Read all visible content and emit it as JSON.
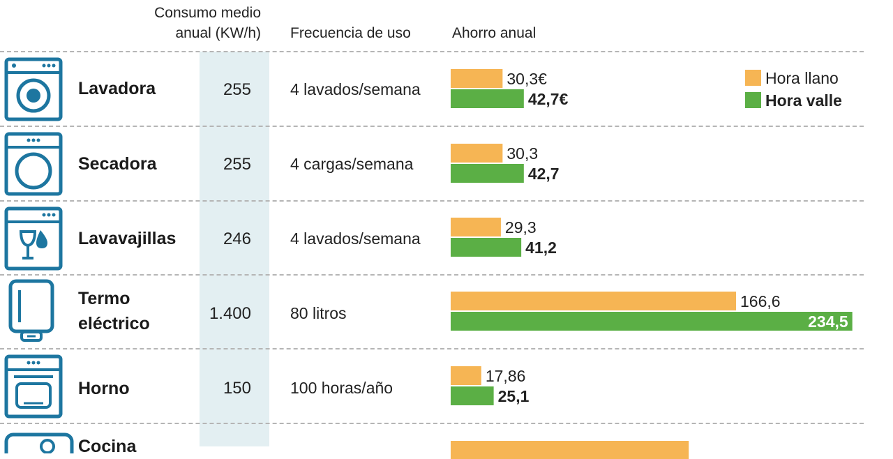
{
  "header": {
    "consumo_line1": "Consumo medio",
    "consumo_line2": "anual (KW/h)",
    "frecuencia": "Frecuencia de uso",
    "ahorro": "Ahorro anual"
  },
  "legend": {
    "llano": "Hora llano",
    "valle": "Hora valle"
  },
  "colors": {
    "llano": "#f6b554",
    "valle": "#5baf45",
    "icon": "#1d76a0",
    "band": "#e3eff2"
  },
  "rows": [
    {
      "name": "Lavadora",
      "name2": "",
      "consumo": "255",
      "frecuencia": "4 lavados/semana",
      "icon": "washing-machine-icon"
    },
    {
      "name": "Secadora",
      "name2": "",
      "consumo": "255",
      "frecuencia": "4 cargas/semana",
      "icon": "dryer-icon"
    },
    {
      "name": "Lavavajillas",
      "name2": "",
      "consumo": "246",
      "frecuencia": "4 lavados/semana",
      "icon": "dishwasher-icon"
    },
    {
      "name": "Termo",
      "name2": "eléctrico",
      "consumo": "1.400",
      "frecuencia": "80 litros",
      "icon": "water-heater-icon"
    },
    {
      "name": "Horno",
      "name2": "",
      "consumo": "150",
      "frecuencia": "100 horas/año",
      "icon": "oven-icon"
    },
    {
      "name": "Cocina",
      "name2": "",
      "consumo": "",
      "frecuencia": "",
      "icon": "cooktop-icon"
    }
  ],
  "chart_data": {
    "type": "bar",
    "orientation": "horizontal",
    "title": "Ahorro anual",
    "categories": [
      "Lavadora",
      "Secadora",
      "Lavavajillas",
      "Termo eléctrico",
      "Horno",
      "Cocina"
    ],
    "series": [
      {
        "name": "Hora llano",
        "values": [
          30.3,
          30.3,
          29.3,
          166.6,
          17.86,
          139.0
        ],
        "labels": [
          "30,3€",
          "30,3",
          "29,3",
          "166,6",
          "17,86",
          ""
        ]
      },
      {
        "name": "Hora valle",
        "values": [
          42.7,
          42.7,
          41.2,
          234.5,
          25.1,
          null
        ],
        "labels": [
          "42,7€",
          "42,7",
          "41,2",
          "234,5",
          "25,1",
          ""
        ]
      }
    ],
    "xlim": [
      0,
      234.5
    ],
    "legend_position": "top-right"
  }
}
